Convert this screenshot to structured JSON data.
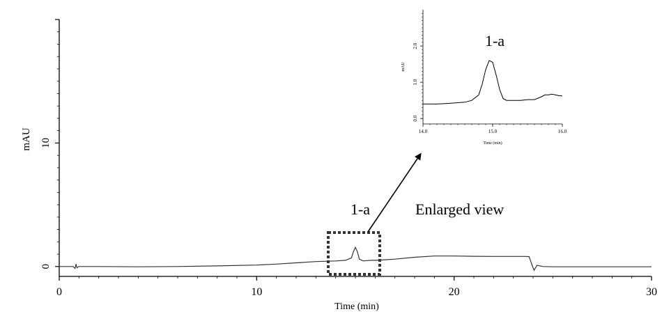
{
  "chart_data": [
    {
      "type": "line",
      "title": "",
      "xlabel": "Time (min)",
      "ylabel": "mAU",
      "xlim": [
        0,
        30
      ],
      "ylim": [
        -0.8,
        20
      ],
      "x_ticks": [
        0,
        10,
        20,
        30
      ],
      "y_ticks": [
        0,
        10
      ],
      "grid": false,
      "series": [
        {
          "x": [
            0,
            0.7,
            0.8,
            0.85,
            0.9,
            1.0,
            2,
            4,
            6,
            8,
            10,
            11,
            12,
            13,
            14,
            14.5,
            14.8,
            14.9,
            15.0,
            15.1,
            15.2,
            15.4,
            15.6,
            15.8,
            16.0,
            16.2,
            16.5,
            17,
            18,
            19,
            20,
            21,
            22,
            23,
            23.6,
            23.8,
            23.95,
            24.05,
            24.2,
            24.5,
            25,
            26,
            27,
            28,
            29,
            30
          ],
          "y": [
            0.0,
            0.0,
            -0.15,
            0.2,
            -0.1,
            0.0,
            0.0,
            -0.02,
            0.0,
            0.05,
            0.12,
            0.2,
            0.3,
            0.4,
            0.45,
            0.5,
            0.7,
            1.2,
            1.55,
            1.2,
            0.6,
            0.45,
            0.48,
            0.5,
            0.5,
            0.52,
            0.55,
            0.6,
            0.75,
            0.85,
            0.85,
            0.83,
            0.82,
            0.82,
            0.82,
            0.8,
            0.1,
            -0.3,
            0.1,
            0.0,
            -0.02,
            -0.02,
            -0.02,
            -0.02,
            -0.02,
            -0.02
          ]
        }
      ],
      "annotations": {
        "peak_label": "1-a",
        "enlarged_label": "Enlarged view"
      }
    },
    {
      "type": "line",
      "title": "1-a",
      "xlabel": "Time (min)",
      "ylabel": "mAU",
      "xlim": [
        14.0,
        16.0
      ],
      "ylim": [
        -0.15,
        3.0
      ],
      "x_ticks": [
        "14.0",
        "15.0",
        "16.0"
      ],
      "y_ticks": [
        "0.0",
        "1.0",
        "2.0"
      ],
      "grid": false,
      "series": [
        {
          "x": [
            14.0,
            14.2,
            14.4,
            14.6,
            14.7,
            14.8,
            14.85,
            14.9,
            14.95,
            15.0,
            15.05,
            15.1,
            15.15,
            15.2,
            15.3,
            15.4,
            15.5,
            15.6,
            15.7,
            15.75,
            15.8,
            15.85,
            15.9,
            15.95,
            16.0
          ],
          "y": [
            0.4,
            0.4,
            0.42,
            0.45,
            0.5,
            0.65,
            0.95,
            1.35,
            1.6,
            1.55,
            1.2,
            0.8,
            0.55,
            0.5,
            0.5,
            0.5,
            0.52,
            0.52,
            0.6,
            0.65,
            0.65,
            0.67,
            0.65,
            0.63,
            0.62
          ]
        }
      ]
    }
  ]
}
